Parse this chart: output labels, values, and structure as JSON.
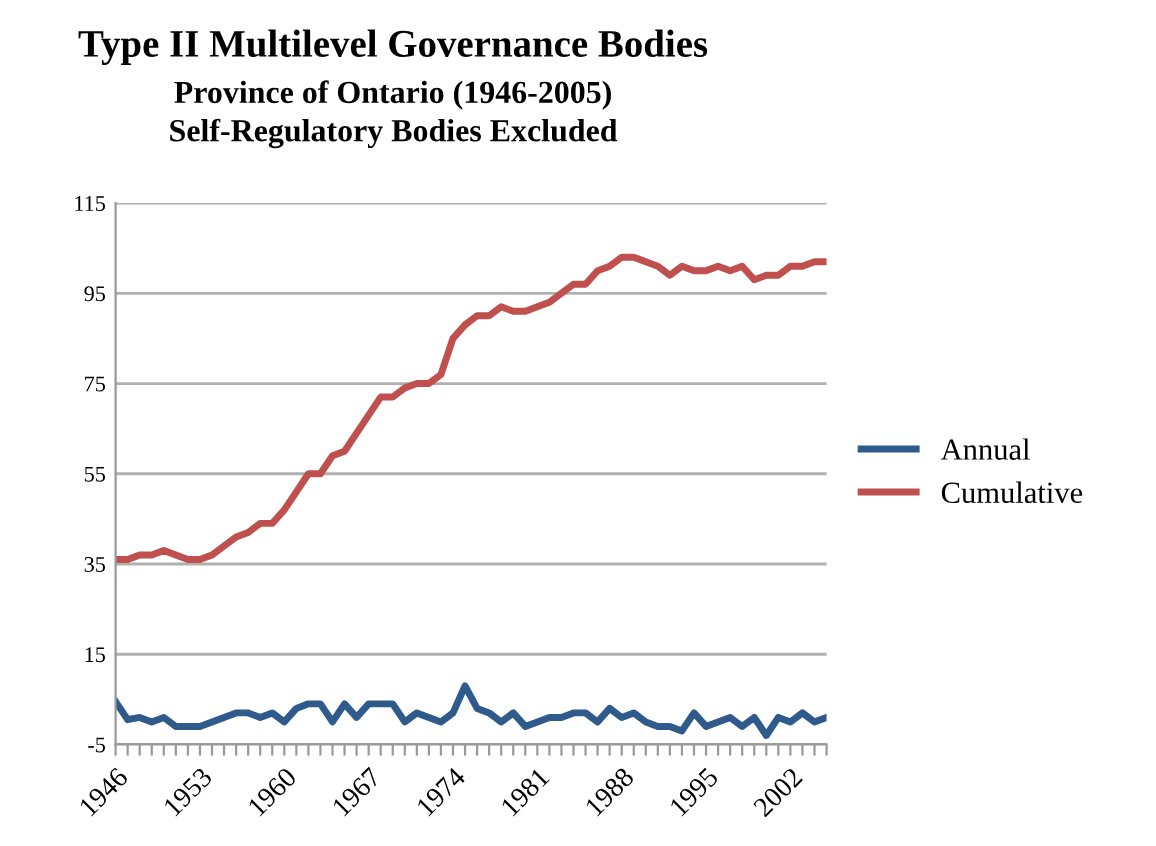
{
  "chart_data": {
    "type": "line",
    "title": "Type II Multilevel Governance Bodies",
    "subtitle": "Province of Ontario (1946-2005)\nSelf-Regulatory Bodies Excluded",
    "categories": [
      "1946",
      null,
      null,
      null,
      null,
      null,
      null,
      "1953",
      null,
      null,
      null,
      null,
      null,
      null,
      "1960",
      null,
      null,
      null,
      null,
      null,
      null,
      "1967",
      null,
      null,
      null,
      null,
      null,
      null,
      "1974",
      null,
      null,
      null,
      null,
      null,
      null,
      "1981",
      null,
      null,
      null,
      null,
      null,
      null,
      "1988",
      null,
      null,
      null,
      null,
      null,
      null,
      "1995",
      null,
      null,
      null,
      null,
      null,
      null,
      "2002",
      null,
      null,
      null
    ],
    "series": [
      {
        "name": "Annual",
        "color": "#2f5b8c",
        "values": [
          4.5,
          0.5,
          1,
          0,
          1,
          -1,
          -1,
          -1,
          0,
          1,
          2,
          2,
          1,
          2,
          0,
          3,
          4,
          4,
          0,
          4,
          1,
          4,
          4,
          4,
          0,
          2,
          1,
          0,
          2,
          8,
          3,
          2,
          0,
          2,
          -1,
          0,
          1,
          1,
          2,
          2,
          0,
          3,
          1,
          2,
          0,
          -1,
          -1,
          -2,
          2,
          -1,
          0,
          1,
          -1,
          1,
          -3,
          1,
          0,
          2,
          0,
          1
        ]
      },
      {
        "name": "Cumulative",
        "color": "#c0504d",
        "values": [
          36,
          36,
          37,
          37,
          38,
          37,
          36,
          36,
          37,
          39,
          41,
          42,
          44,
          44,
          47,
          51,
          55,
          55,
          59,
          60,
          64,
          68,
          72,
          72,
          74,
          75,
          75,
          77,
          85,
          88,
          90,
          90,
          92,
          91,
          91,
          92,
          93,
          95,
          97,
          97,
          100,
          101,
          103,
          103,
          102,
          101,
          99,
          101,
          100,
          100,
          101,
          100,
          101,
          98,
          99,
          99,
          101,
          101,
          102,
          102
        ]
      }
    ],
    "ylim": [
      -5,
      115
    ],
    "yticks": [
      -5,
      15,
      35,
      55,
      75,
      95,
      115
    ],
    "grid": "y",
    "legend": "right",
    "marker": "none",
    "line_style": "solid"
  }
}
